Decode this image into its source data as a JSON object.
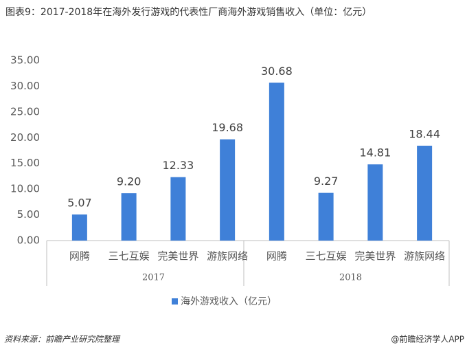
{
  "chart_data": {
    "type": "bar",
    "title": "图表9：2017-2018年在海外发行游戏的代表性厂商海外游戏销售收入（单位：亿元）",
    "categories": [
      "网腾",
      "三七互娱",
      "完美世界",
      "游族网络",
      "网腾",
      "三七互娱",
      "完美世界",
      "游族网络"
    ],
    "groups": [
      "2017",
      "2018"
    ],
    "series": [
      {
        "name": "海外游戏收入（亿元）",
        "color": "#3f80d8",
        "values": [
          5.07,
          9.2,
          12.33,
          19.68,
          30.68,
          9.27,
          14.81,
          18.44
        ],
        "value_labels": [
          "5.07",
          "9.20",
          "12.33",
          "19.68",
          "30.68",
          "9.27",
          "14.81",
          "18.44"
        ]
      }
    ],
    "ylim": [
      0,
      35
    ],
    "yticks": [
      {
        "value": 0,
        "label": "0.00"
      },
      {
        "value": 5,
        "label": "5.00"
      },
      {
        "value": 10,
        "label": "10.00"
      },
      {
        "value": 15,
        "label": "15.00"
      },
      {
        "value": 20,
        "label": "20.00"
      },
      {
        "value": 25,
        "label": "25.00"
      },
      {
        "value": 30,
        "label": "30.00"
      },
      {
        "value": 35,
        "label": "35.00"
      }
    ],
    "grid": false,
    "legend": "bottom",
    "source": "资料来源：前瞻产业研究院整理",
    "credit": "@前瞻经济学人APP"
  }
}
